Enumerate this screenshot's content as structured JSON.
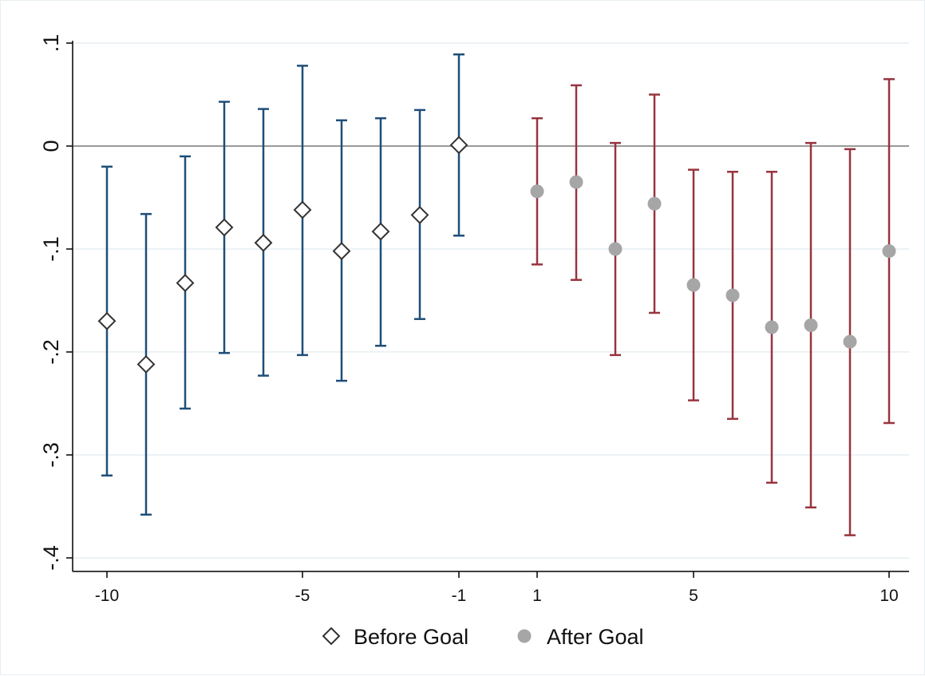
{
  "chart_data": {
    "type": "scatter",
    "title": "",
    "xlabel": "",
    "ylabel": "",
    "xlim": [
      -10.8,
      10.5
    ],
    "ylim": [
      -0.41,
      0.105
    ],
    "x_ticks": [
      -10,
      -5,
      -1,
      1,
      5,
      10
    ],
    "x_tick_labels": [
      "-10",
      "-5",
      "-1",
      "1",
      "5",
      "10"
    ],
    "y_ticks": [
      0.1,
      0,
      -0.1,
      -0.2,
      -0.3,
      -0.4
    ],
    "y_tick_labels": [
      ".1",
      "0",
      "-.1",
      "-.2",
      "-.3",
      "-.4"
    ],
    "grid": "horizontal",
    "reference_line_y": 0,
    "legend_placement": "bottom",
    "series": [
      {
        "name": "Before Goal",
        "marker": "hollow-diamond",
        "ci_color": "#1f4e79",
        "points": [
          {
            "x": -10,
            "y": -0.17,
            "lo": -0.32,
            "hi": -0.02
          },
          {
            "x": -9,
            "y": -0.212,
            "lo": -0.358,
            "hi": -0.066
          },
          {
            "x": -8,
            "y": -0.133,
            "lo": -0.255,
            "hi": -0.01
          },
          {
            "x": -7,
            "y": -0.079,
            "lo": -0.201,
            "hi": 0.043
          },
          {
            "x": -6,
            "y": -0.094,
            "lo": -0.223,
            "hi": 0.036
          },
          {
            "x": -5,
            "y": -0.062,
            "lo": -0.203,
            "hi": 0.078
          },
          {
            "x": -4,
            "y": -0.102,
            "lo": -0.228,
            "hi": 0.025
          },
          {
            "x": -3,
            "y": -0.083,
            "lo": -0.194,
            "hi": 0.027
          },
          {
            "x": -2,
            "y": -0.067,
            "lo": -0.168,
            "hi": 0.035
          },
          {
            "x": -1,
            "y": 0.001,
            "lo": -0.087,
            "hi": 0.089
          }
        ]
      },
      {
        "name": "After Goal",
        "marker": "filled-circle",
        "ci_color": "#98343e",
        "points": [
          {
            "x": 1,
            "y": -0.044,
            "lo": -0.115,
            "hi": 0.027
          },
          {
            "x": 2,
            "y": -0.035,
            "lo": -0.13,
            "hi": 0.059
          },
          {
            "x": 3,
            "y": -0.1,
            "lo": -0.203,
            "hi": 0.003
          },
          {
            "x": 4,
            "y": -0.056,
            "lo": -0.162,
            "hi": 0.05
          },
          {
            "x": 5,
            "y": -0.135,
            "lo": -0.247,
            "hi": -0.023
          },
          {
            "x": 6,
            "y": -0.145,
            "lo": -0.265,
            "hi": -0.025
          },
          {
            "x": 7,
            "y": -0.176,
            "lo": -0.327,
            "hi": -0.025
          },
          {
            "x": 8,
            "y": -0.174,
            "lo": -0.351,
            "hi": 0.003
          },
          {
            "x": 9,
            "y": -0.19,
            "lo": -0.378,
            "hi": -0.003
          },
          {
            "x": 10,
            "y": -0.102,
            "lo": -0.269,
            "hi": 0.065
          }
        ]
      }
    ],
    "colors": {
      "gridline": "#e6eef2",
      "refline": "#9a9a9a",
      "axis": "#000000",
      "before_marker_stroke": "#333333",
      "after_marker_fill": "#a6a6a6"
    }
  }
}
